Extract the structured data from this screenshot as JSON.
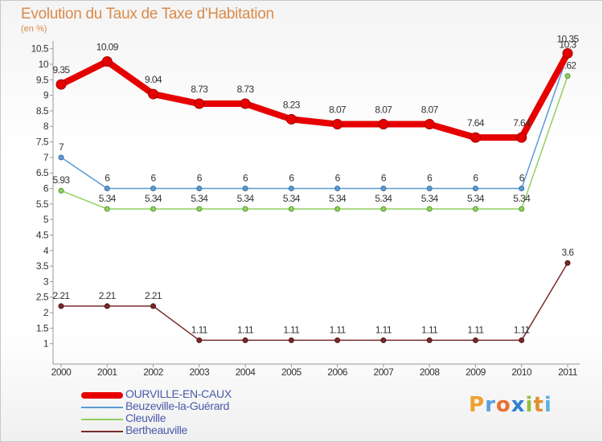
{
  "header": {
    "title": "Evolution du Taux de Taxe d'Habitation",
    "subtitle": "(en %)"
  },
  "logo": {
    "letters": [
      "P",
      "r",
      "o",
      "x",
      "i",
      "t",
      "i"
    ],
    "colors": [
      "#f0a030",
      "#5aa0e0",
      "#e87030",
      "#3080d0",
      "#90c040",
      "#e09030",
      "#60b0e0"
    ]
  },
  "chart_data": {
    "type": "line",
    "x": [
      "2000",
      "2001",
      "2002",
      "2003",
      "2004",
      "2005",
      "2006",
      "2007",
      "2008",
      "2009",
      "2010",
      "2011"
    ],
    "y_ticks": [
      "1",
      "1.5",
      "2",
      "2.5",
      "3",
      "3.5",
      "4",
      "4.5",
      "5",
      "5.5",
      "6",
      "6.5",
      "7",
      "7.5",
      "8",
      "8.5",
      "9",
      "9.5",
      "10",
      "10.5"
    ],
    "ylim": [
      0.5,
      10.75
    ],
    "grid": false,
    "legend_position": "bottom-left",
    "series": [
      {
        "name": "Bertheauville",
        "color": "#7a2a2a",
        "values": [
          2.21,
          2.21,
          2.21,
          1.11,
          1.11,
          1.11,
          1.11,
          1.11,
          1.11,
          1.11,
          1.11,
          3.6
        ],
        "labels": [
          "2.21",
          "2.21",
          "2.21",
          "1.11",
          "1.11",
          "1.11",
          "1.11",
          "1.11",
          "1.11",
          "1.11",
          "1.11",
          "3.6"
        ]
      },
      {
        "name": "Cleuville",
        "color": "#90d060",
        "values": [
          5.93,
          5.34,
          5.34,
          5.34,
          5.34,
          5.34,
          5.34,
          5.34,
          5.34,
          5.34,
          5.34,
          9.62
        ],
        "labels": [
          "5.93",
          "5.34",
          "5.34",
          "5.34",
          "5.34",
          "5.34",
          "5.34",
          "5.34",
          "5.34",
          "5.34",
          "5.34",
          "9.62"
        ]
      },
      {
        "name": "Beuzeville-la-Guérard",
        "color": "#5b9bd5",
        "values": [
          7,
          6,
          6,
          6,
          6,
          6,
          6,
          6,
          6,
          6,
          6,
          10.3
        ],
        "labels": [
          "7",
          "6",
          "6",
          "6",
          "6",
          "6",
          "6",
          "6",
          "6",
          "6",
          "6",
          "10.3"
        ]
      },
      {
        "name": "OURVILLE-EN-CAUX",
        "color": "#e60000",
        "values": [
          9.35,
          10.09,
          9.04,
          8.73,
          8.73,
          8.23,
          8.07,
          8.07,
          8.07,
          7.64,
          7.64,
          10.35
        ],
        "labels": [
          "9.35",
          "10.09",
          "9.04",
          "8.73",
          "8.73",
          "8.23",
          "8.07",
          "8.07",
          "8.07",
          "7.64",
          "7.64",
          "10.35"
        ]
      }
    ],
    "legend": [
      "OURVILLE-EN-CAUX",
      "Beuzeville-la-Guérard",
      "Cleuville",
      "Bertheauville"
    ]
  }
}
